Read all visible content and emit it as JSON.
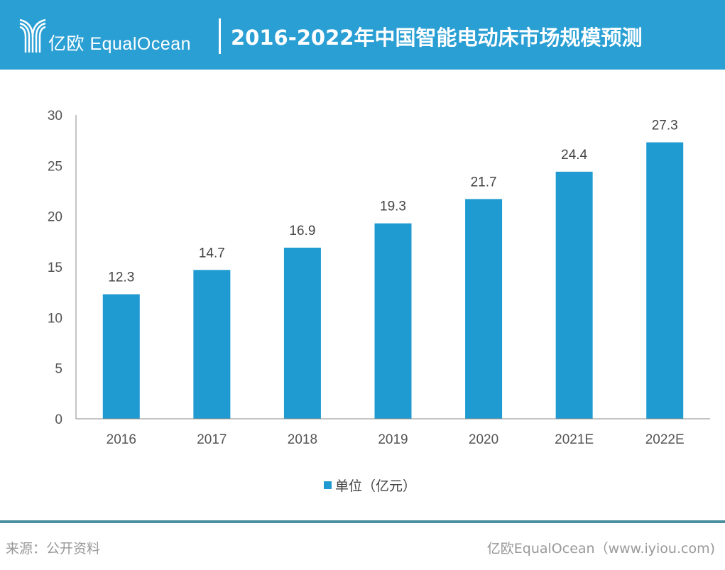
{
  "header": {
    "brand": "亿欧 EqualOcean",
    "title": "2016-2022年中国智能电动床市场规模预测",
    "color": "#2a9fd4"
  },
  "chart_data": {
    "type": "bar",
    "categories": [
      "2016",
      "2017",
      "2018",
      "2019",
      "2020",
      "2021E",
      "2022E"
    ],
    "series": [
      {
        "name": "单位（亿元）",
        "values": [
          12.3,
          14.7,
          16.9,
          19.3,
          21.7,
          24.4,
          27.3
        ]
      }
    ],
    "data_labels": [
      "12.3",
      "14.7",
      "16.9",
      "19.3",
      "21.7",
      "24.4",
      "27.3"
    ],
    "yticks": [
      "0",
      "5",
      "10",
      "15",
      "20",
      "25",
      "30"
    ],
    "ylim": [
      0,
      30
    ],
    "grid": false,
    "legend": "bottom",
    "bar_color": "#1f9bd1"
  },
  "footer": {
    "source": "来源：公开资料",
    "credit": "亿欧EqualOcean（www.iyiou.com)"
  }
}
